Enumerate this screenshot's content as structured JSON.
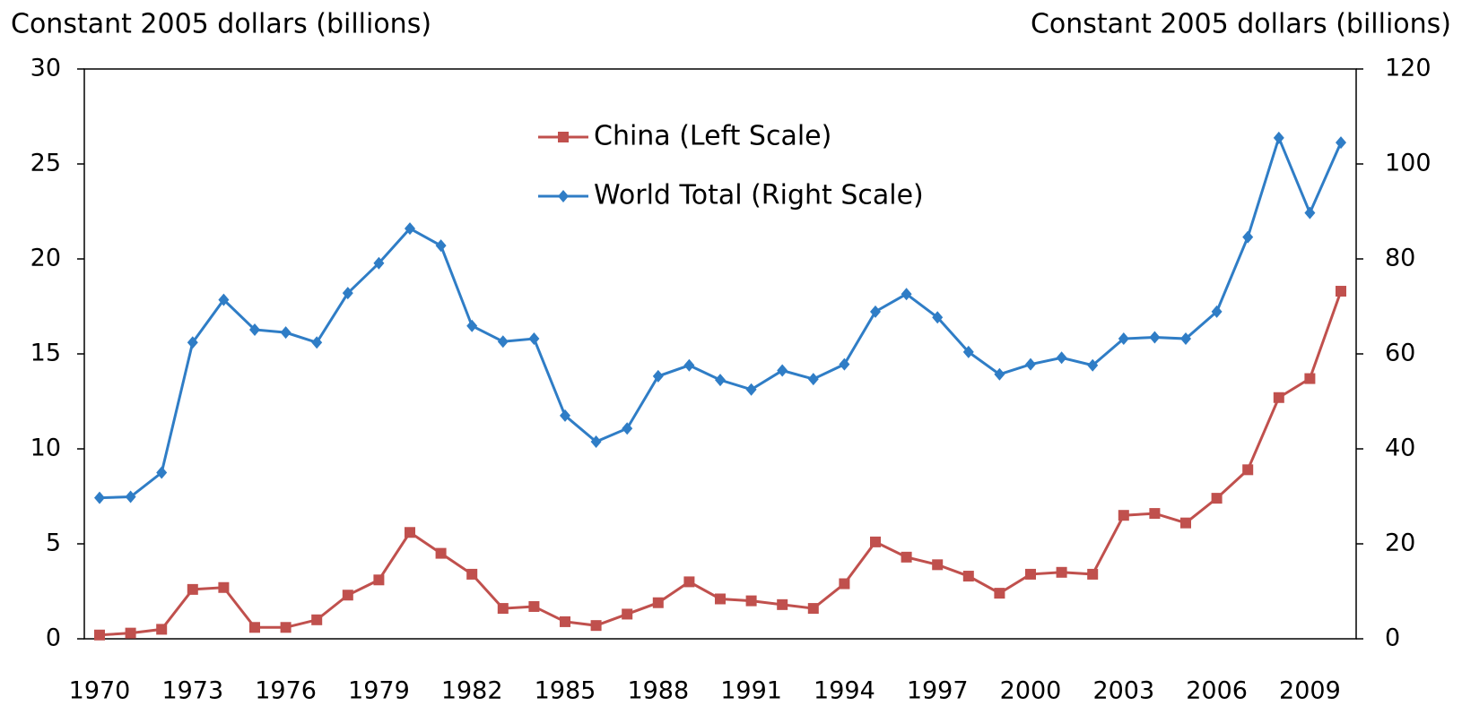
{
  "chart_data": {
    "type": "line",
    "y_label": "Constant 2005 dollars (billions)",
    "y2_label": "Constant 2005 dollars (billions)",
    "categories": [
      "1970",
      null,
      null,
      "1973",
      null,
      null,
      "1976",
      null,
      null,
      "1979",
      null,
      null,
      "1982",
      null,
      null,
      "1985",
      null,
      null,
      "1988",
      null,
      null,
      "1991",
      null,
      null,
      "1994",
      null,
      null,
      "1997",
      null,
      null,
      "2000",
      null,
      null,
      "2003",
      null,
      null,
      "2006",
      null,
      null,
      "2009",
      null
    ],
    "series": [
      {
        "name": "China (Left Scale)",
        "color": "#c0504d",
        "marker": "square",
        "axis": "y",
        "values": [
          0.2,
          0.3,
          0.5,
          2.6,
          2.7,
          0.6,
          0.6,
          1.0,
          2.3,
          3.1,
          5.6,
          4.5,
          3.4,
          1.6,
          1.7,
          0.9,
          0.7,
          1.3,
          1.9,
          3.0,
          2.1,
          2.0,
          1.8,
          1.6,
          2.9,
          5.1,
          4.3,
          3.9,
          3.3,
          2.4,
          3.4,
          3.5,
          3.4,
          6.5,
          6.6,
          6.1,
          7.4,
          8.9,
          12.7,
          13.7,
          18.3
        ]
      },
      {
        "name": "World Total (Right Scale)",
        "color": "#2f7dc6",
        "marker": "diamond",
        "axis": "y2",
        "values": [
          29.7,
          29.9,
          35.0,
          62.4,
          71.4,
          65.1,
          64.5,
          62.4,
          72.8,
          79.1,
          86.4,
          82.8,
          65.9,
          62.6,
          63.2,
          47.0,
          41.5,
          44.3,
          55.3,
          57.6,
          54.5,
          52.5,
          56.5,
          54.7,
          57.8,
          68.9,
          72.6,
          67.7,
          60.4,
          55.7,
          57.8,
          59.2,
          57.6,
          63.2,
          63.5,
          63.2,
          68.9,
          84.6,
          105.5,
          89.7,
          104.5
        ]
      }
    ],
    "ylim": [
      0,
      30
    ],
    "yticks": [
      0,
      5,
      10,
      15,
      20,
      25,
      30
    ],
    "y2lim": [
      0,
      120
    ],
    "y2ticks": [
      0,
      20,
      40,
      60,
      80,
      100,
      120
    ],
    "grid": false
  }
}
